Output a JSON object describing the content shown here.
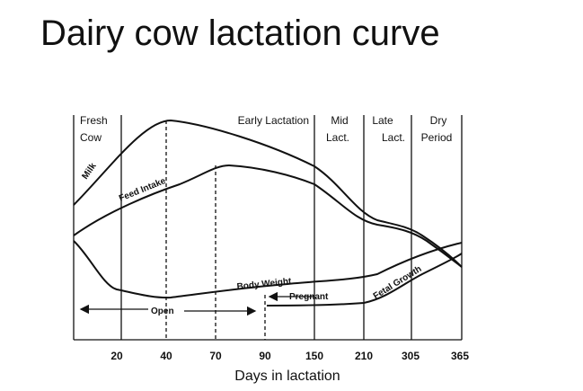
{
  "title": "Dairy cow lactation curve",
  "x_axis": {
    "label": "Days in lactation",
    "ticks": [
      20,
      40,
      70,
      90,
      150,
      210,
      305,
      365
    ]
  },
  "phases": [
    {
      "lines": [
        "Fresh",
        "Cow"
      ]
    },
    {
      "lines": [
        "Early Lactation"
      ]
    },
    {
      "lines": [
        "Mid",
        "Lact."
      ]
    },
    {
      "lines": [
        "Late",
        "Lact."
      ]
    },
    {
      "lines": [
        "Dry",
        "Period"
      ]
    }
  ],
  "curves": {
    "milk": "Milk",
    "feed_intake": "Feed Intake",
    "body_weight": "Body Weight",
    "fetal_growth": "Fetal Growth"
  },
  "annotations": {
    "pregnant": "Pregnant",
    "open": "Open"
  }
}
